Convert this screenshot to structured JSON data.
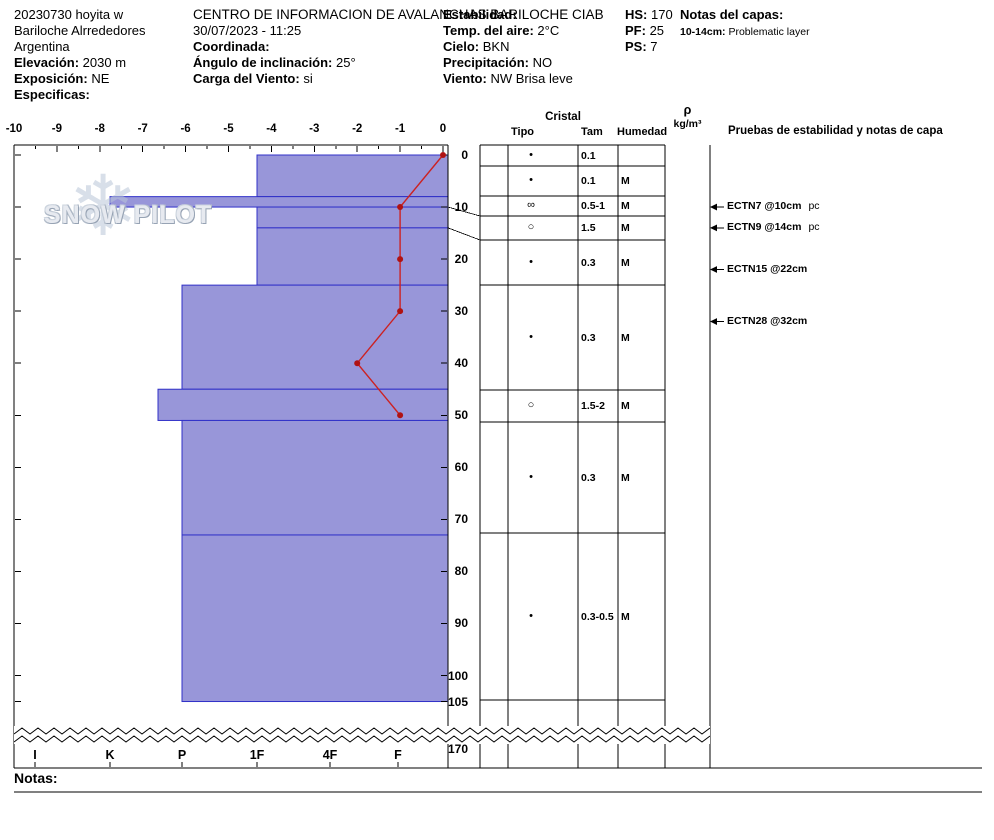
{
  "header": {
    "site": {
      "line1": "20230730 hoyita w",
      "line2": "Bariloche Alrrededores",
      "line3": "Argentina"
    },
    "elevation": {
      "label": "Elevación:",
      "value": "2030 m"
    },
    "aspect": {
      "label": "Exposición:",
      "value": "NE"
    },
    "specifics": {
      "label": "Especificas:",
      "value": ""
    },
    "org_title": "CENTRO DE INFORMACION DE AVALANCHAS BARILOCHE CIAB",
    "datetime": "30/07/2023 - 11:25",
    "coordinates": {
      "label": "Coordinada:",
      "value": ""
    },
    "slope_angle": {
      "label": "Ángulo de inclinación:",
      "value": "25°"
    },
    "wind_load": {
      "label": "Carga del Viento:",
      "value": "si"
    },
    "stability": {
      "label": "Estabilidad:",
      "value": ""
    },
    "air_temp": {
      "label": "Temp. del aire:",
      "value": "2°C"
    },
    "sky": {
      "label": "Cielo:",
      "value": "BKN"
    },
    "precipitation": {
      "label": "Precipitación:",
      "value": "NO"
    },
    "wind": {
      "label": "Viento:",
      "value": "NW Brisa leve"
    },
    "hs": {
      "label": "HS:",
      "value": "170"
    },
    "pf": {
      "label": "PF:",
      "value": "25"
    },
    "ps": {
      "label": "PS:",
      "value": "7"
    },
    "layer_notes_title": "Notas del capas:",
    "layer_note": {
      "label": "10-14cm:",
      "value": "Problematic layer"
    }
  },
  "watermark": {
    "text": "SNOW PILOT",
    "icon": "snowflake-icon"
  },
  "table_headers": {
    "cristal": "Cristal",
    "tipo": "Tipo",
    "tam": "Tam",
    "humedad": "Humedad",
    "rho_symbol": "ρ",
    "rho_unit": "kg/m³",
    "tests_title": "Pruebas de estabilidad y notas de capa"
  },
  "footer": {
    "notes_label": "Notas:"
  },
  "colors": {
    "bar_fill": "#9896d9",
    "bar_stroke": "#3030c8",
    "temp_line": "#cc2222",
    "temp_dot": "#b01212",
    "grid": "#000000"
  },
  "chart_data": {
    "type": "snow-profile",
    "temp_axis": {
      "ticks": [
        -10,
        -9,
        -8,
        -7,
        -6,
        -5,
        -4,
        -3,
        -2,
        -1,
        0
      ],
      "unit": "°C"
    },
    "depth_axis": {
      "ticks": [
        0,
        10,
        20,
        30,
        40,
        50,
        60,
        70,
        80,
        90,
        100,
        105
      ],
      "break_label": "170",
      "unit": "cm"
    },
    "hardness_axis": {
      "ticks": [
        "I",
        "K",
        "P",
        "1F",
        "4F",
        "F"
      ]
    },
    "total_snow_height_cm": 170,
    "pit_depth_cm": 105,
    "layers": [
      {
        "top_cm": 0,
        "bottom_cm": 8,
        "hardness": "1F"
      },
      {
        "top_cm": 8,
        "bottom_cm": 10,
        "hardness": "K"
      },
      {
        "top_cm": 10,
        "bottom_cm": 14,
        "hardness": "1F"
      },
      {
        "top_cm": 14,
        "bottom_cm": 25,
        "hardness": "1F"
      },
      {
        "top_cm": 25,
        "bottom_cm": 45,
        "hardness": "P"
      },
      {
        "top_cm": 45,
        "bottom_cm": 51,
        "hardness": "P+"
      },
      {
        "top_cm": 51,
        "bottom_cm": 73,
        "hardness": "P"
      },
      {
        "top_cm": 73,
        "bottom_cm": 105,
        "hardness": "P"
      }
    ],
    "temperature_profile": [
      {
        "depth_cm": 0,
        "temp_c": 0
      },
      {
        "depth_cm": 10,
        "temp_c": -1
      },
      {
        "depth_cm": 20,
        "temp_c": -1
      },
      {
        "depth_cm": 30,
        "temp_c": -1
      },
      {
        "depth_cm": 40,
        "temp_c": -2
      },
      {
        "depth_cm": 50,
        "temp_c": -1
      }
    ],
    "grain_rows": [
      {
        "tipo_symbol": "•",
        "tipo_name": "rounded-grains",
        "tam": "0.1",
        "humedad": ""
      },
      {
        "tipo_symbol": "•",
        "tipo_name": "rounded-grains",
        "tam": "0.1",
        "humedad": "M"
      },
      {
        "tipo_symbol": "∞",
        "tipo_name": "melt-freeze-crust",
        "tam": "0.5-1",
        "humedad": "M"
      },
      {
        "tipo_symbol": "○",
        "tipo_name": "melt-forms",
        "tam": "1.5",
        "humedad": "M"
      },
      {
        "tipo_symbol": "•",
        "tipo_name": "rounded-grains",
        "tam": "0.3",
        "humedad": "M"
      },
      {
        "tipo_symbol": "•",
        "tipo_name": "rounded-grains",
        "tam": "0.3",
        "humedad": "M"
      },
      {
        "tipo_symbol": "○",
        "tipo_name": "melt-forms",
        "tam": "1.5-2",
        "humedad": "M"
      },
      {
        "tipo_symbol": "•",
        "tipo_name": "rounded-grains",
        "tam": "0.3",
        "humedad": "M"
      },
      {
        "tipo_symbol": "•",
        "tipo_name": "rounded-grains",
        "tam": "0.3-0.5",
        "humedad": "M"
      }
    ],
    "stability_tests": [
      {
        "name": "ECTN7",
        "at": "@10cm",
        "suffix": "pc",
        "depth_cm": 10
      },
      {
        "name": "ECTN9",
        "at": "@14cm",
        "suffix": "pc",
        "depth_cm": 14
      },
      {
        "name": "ECTN15",
        "at": "@22cm",
        "suffix": "",
        "depth_cm": 22
      },
      {
        "name": "ECTN28",
        "at": "@32cm",
        "suffix": "",
        "depth_cm": 32
      }
    ]
  }
}
